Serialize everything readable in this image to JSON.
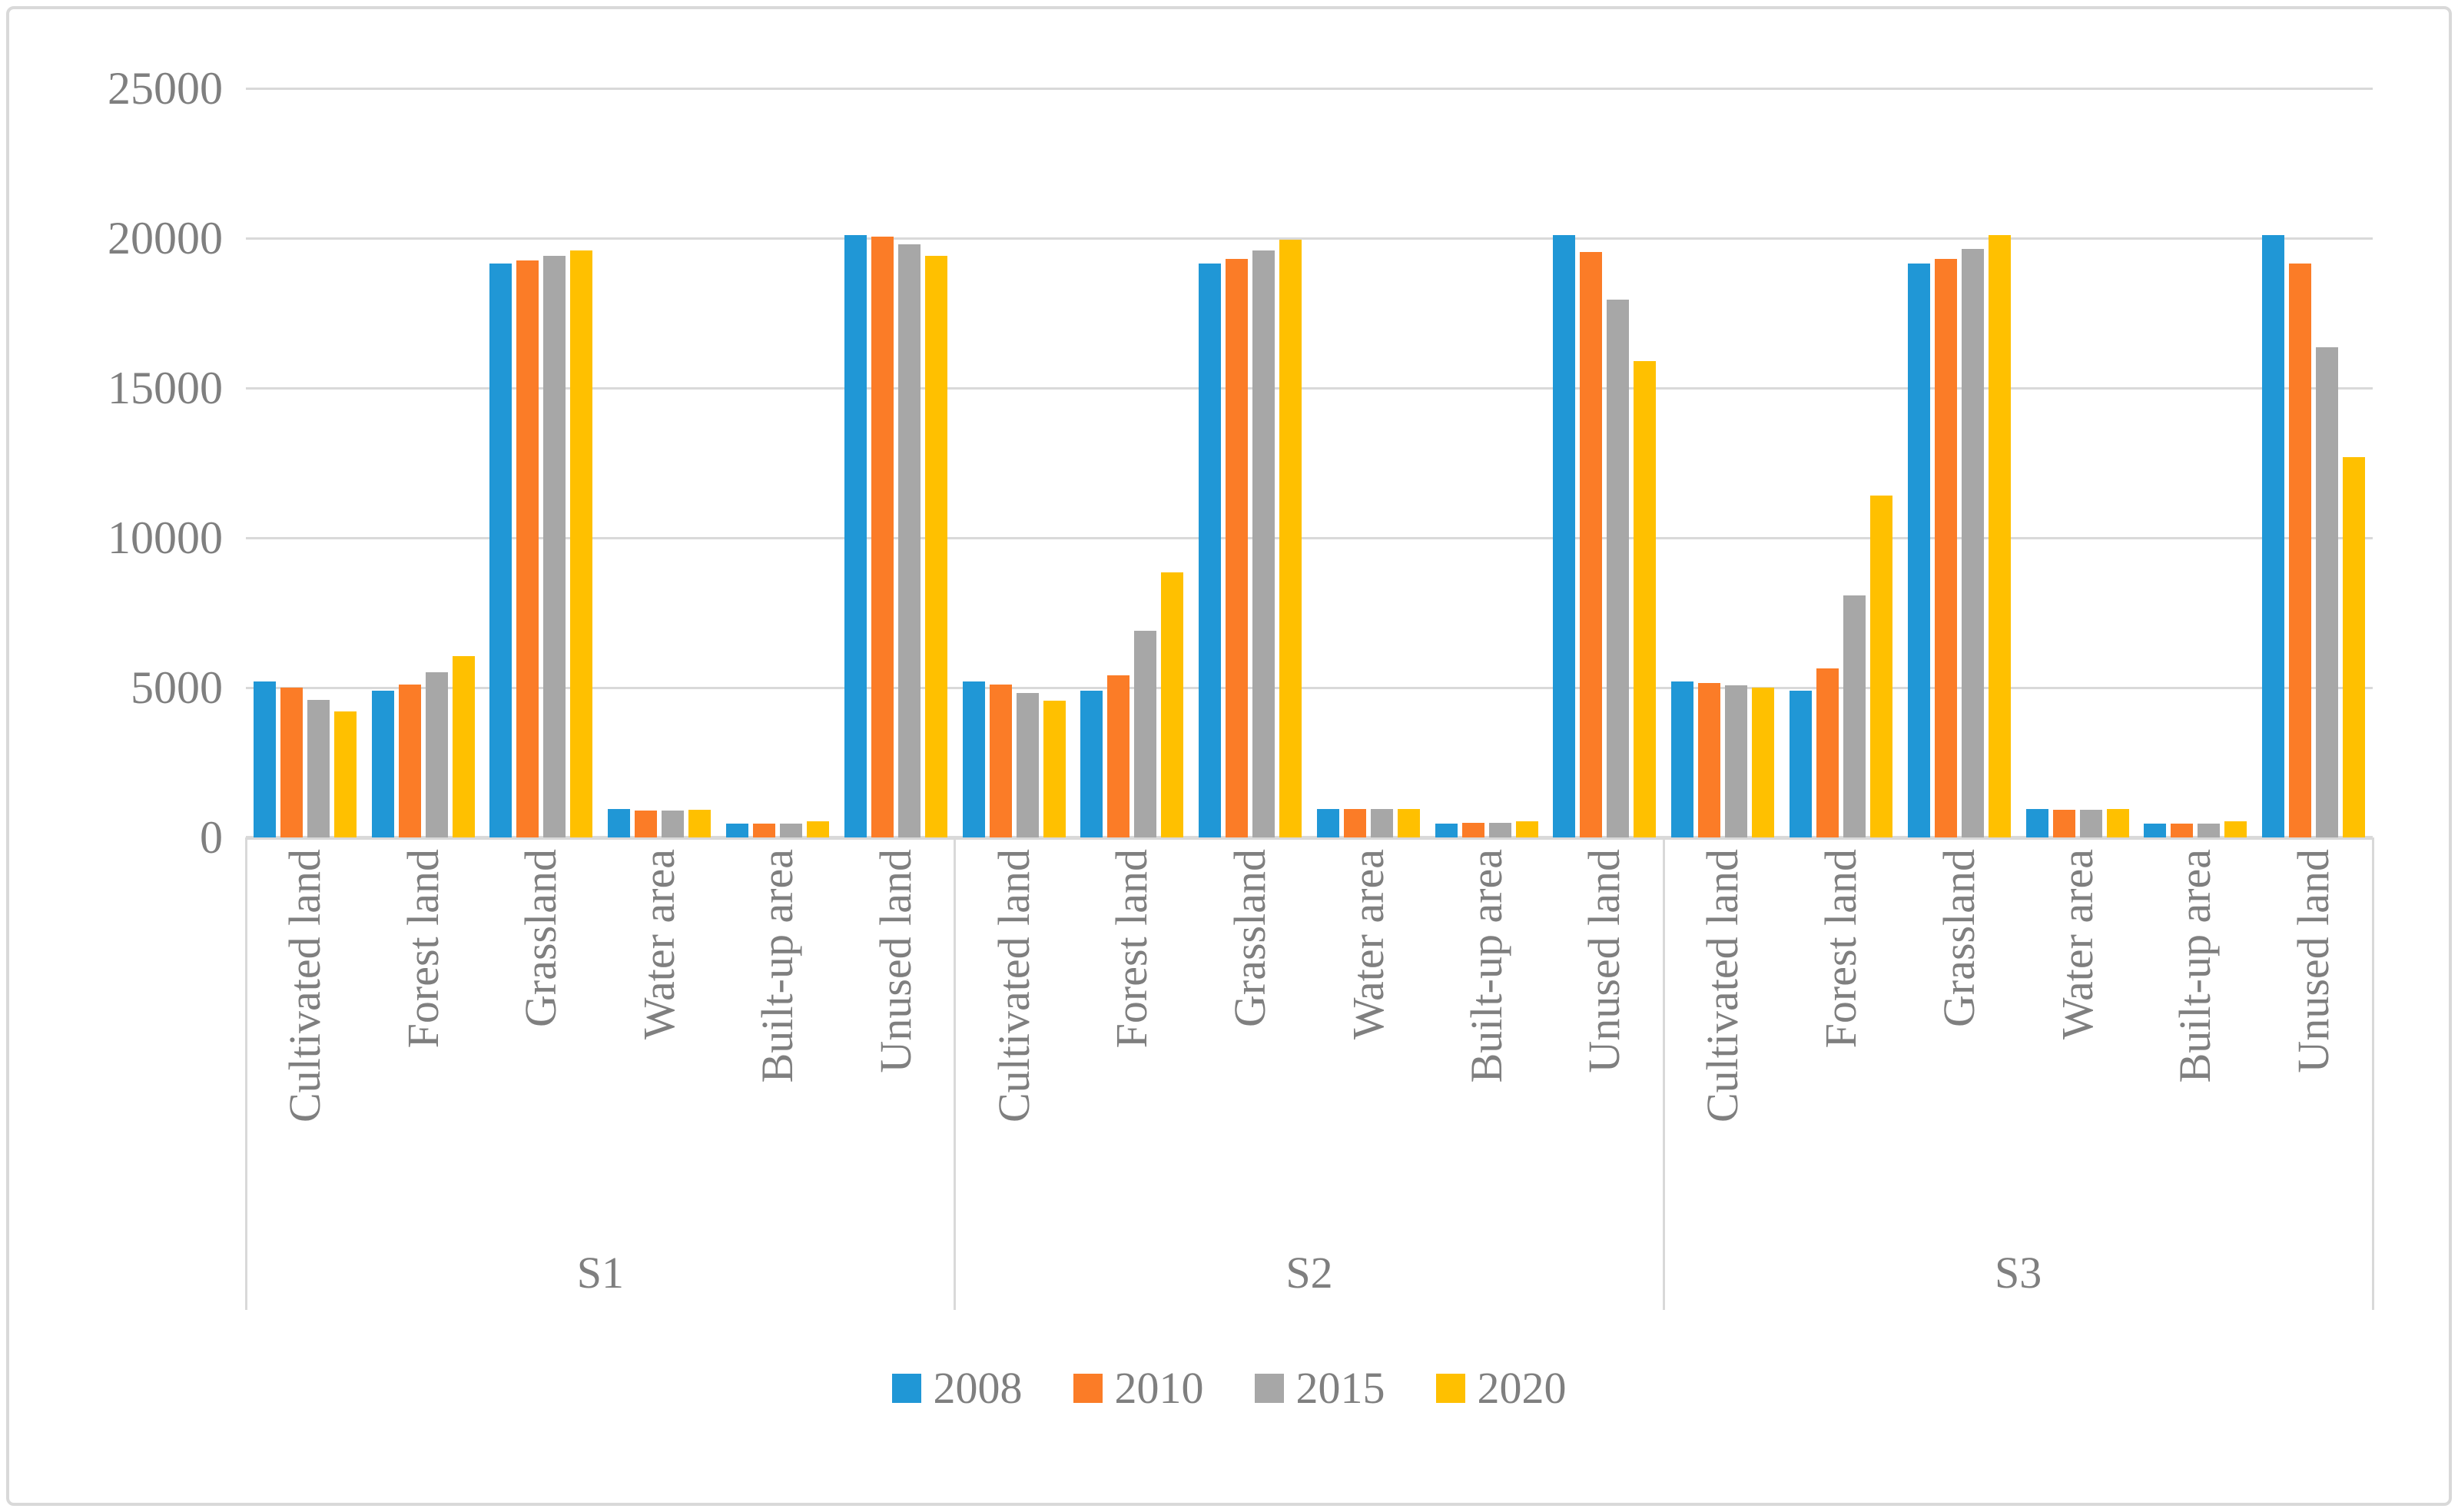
{
  "chart_data": {
    "type": "bar",
    "title": "",
    "xlabel": "",
    "ylabel": "",
    "ylim": [
      0,
      25000
    ],
    "yticks": [
      25000,
      20000,
      15000,
      10000,
      5000,
      0
    ],
    "grid": "horizontal",
    "legend_position": "bottom-center",
    "panels": [
      "S1",
      "S2",
      "S3"
    ],
    "categories": [
      "Cultivated land",
      "Forest land",
      "Grassland",
      "Water area",
      "Built-up area",
      "Unused land"
    ],
    "series": [
      {
        "name": "2008",
        "color": "#2097d6",
        "values": {
          "S1": [
            5200,
            4900,
            19150,
            950,
            465,
            20100
          ],
          "S2": [
            5200,
            4900,
            19150,
            950,
            465,
            20100
          ],
          "S3": [
            5200,
            4900,
            19150,
            950,
            465,
            20100
          ]
        }
      },
      {
        "name": "2010",
        "color": "#fb7c27",
        "values": {
          "S1": [
            5000,
            5100,
            19250,
            900,
            460,
            20050
          ],
          "S2": [
            5100,
            5400,
            19300,
            960,
            480,
            19550
          ],
          "S3": [
            5150,
            5650,
            19300,
            930,
            470,
            19150
          ]
        }
      },
      {
        "name": "2015",
        "color": "#a7a7a7",
        "values": {
          "S1": [
            4600,
            5500,
            19400,
            900,
            455,
            19800
          ],
          "S2": [
            4830,
            6900,
            19600,
            960,
            480,
            17950
          ],
          "S3": [
            5080,
            8080,
            19650,
            930,
            470,
            16350
          ]
        }
      },
      {
        "name": "2020",
        "color": "#ffc000",
        "values": {
          "S1": [
            4200,
            6050,
            19600,
            920,
            545,
            19400
          ],
          "S2": [
            4570,
            8850,
            19950,
            960,
            550,
            15900
          ],
          "S3": [
            4990,
            11400,
            20100,
            940,
            550,
            12700
          ]
        }
      }
    ],
    "colors": {
      "gridline": "#d9d9d9",
      "axis_text": "#7f7f7f",
      "border": "#d9d9d9",
      "background": "#ffffff"
    }
  }
}
